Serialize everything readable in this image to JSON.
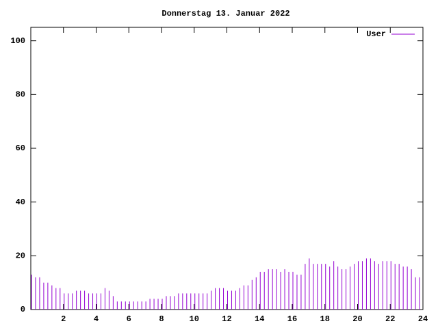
{
  "chart_data": {
    "type": "impulse",
    "title": "Donnerstag 13. Januar 2022",
    "x": [
      0,
      0.25,
      0.5,
      0.75,
      1,
      1.25,
      1.5,
      1.75,
      2,
      2.25,
      2.5,
      2.75,
      3,
      3.25,
      3.5,
      3.75,
      4,
      4.25,
      4.5,
      4.75,
      5,
      5.25,
      5.5,
      5.75,
      6,
      6.25,
      6.5,
      6.75,
      7,
      7.25,
      7.5,
      7.75,
      8,
      8.25,
      8.5,
      8.75,
      9,
      9.25,
      9.5,
      9.75,
      10,
      10.25,
      10.5,
      10.75,
      11,
      11.25,
      11.5,
      11.75,
      12,
      12.25,
      12.5,
      12.75,
      13,
      13.25,
      13.5,
      13.75,
      14,
      14.25,
      14.5,
      14.75,
      15,
      15.25,
      15.5,
      15.75,
      16,
      16.25,
      16.5,
      16.75,
      17,
      17.25,
      17.5,
      17.75,
      18,
      18.25,
      18.5,
      18.75,
      19,
      19.25,
      19.5,
      19.75,
      20,
      20.25,
      20.5,
      20.75,
      21,
      21.25,
      21.5,
      21.75,
      22,
      22.25,
      22.5,
      22.75,
      23,
      23.25,
      23.5,
      23.75
    ],
    "series": [
      {
        "name": "User",
        "color": "#9400d3",
        "values": [
          13,
          12,
          12,
          10,
          10,
          9,
          8,
          8,
          6,
          6,
          6,
          7,
          7,
          7,
          6,
          6,
          6,
          6,
          8,
          7,
          5,
          3,
          3,
          3,
          3,
          3,
          3,
          3,
          3,
          4,
          4,
          4,
          4,
          5,
          5,
          5,
          6,
          6,
          6,
          6,
          6,
          6,
          6,
          6,
          7,
          8,
          8,
          8,
          7,
          7,
          7,
          8,
          9,
          9,
          11,
          12,
          14,
          14,
          15,
          15,
          15,
          14,
          15,
          14,
          14,
          13,
          13,
          17,
          19,
          17,
          17,
          17,
          17,
          16,
          18,
          16,
          15,
          15,
          16,
          17,
          18,
          18,
          19,
          19,
          18,
          17,
          18,
          18,
          18,
          17,
          17,
          16,
          16,
          15,
          12,
          12
        ]
      }
    ],
    "xlim": [
      0,
      24
    ],
    "xticks": [
      2,
      4,
      6,
      8,
      10,
      12,
      14,
      16,
      18,
      20,
      22,
      24
    ],
    "ylim": [
      0,
      105
    ],
    "yticks": [
      0,
      20,
      40,
      60,
      80,
      100
    ],
    "legend": "top-right"
  }
}
